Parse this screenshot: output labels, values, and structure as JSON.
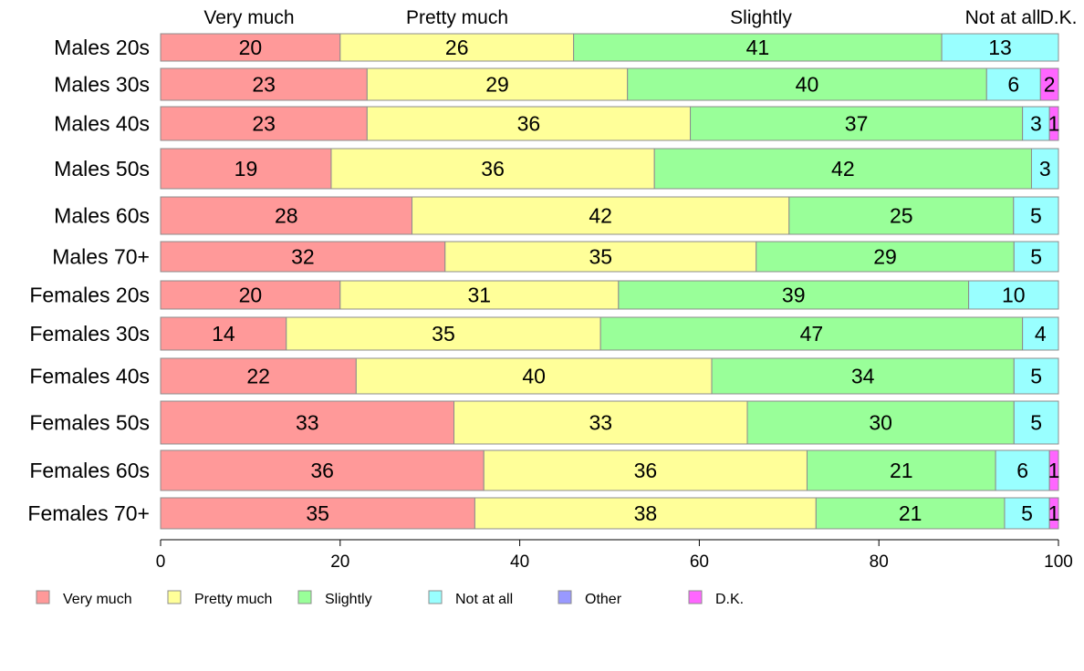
{
  "chart_data": {
    "type": "bar",
    "orientation": "horizontal",
    "stacked": true,
    "categories": [
      "Males 20s",
      "Males 30s",
      "Males 40s",
      "Males 50s",
      "Males 60s",
      "Males 70+",
      "Females 20s",
      "Females 30s",
      "Females 40s",
      "Females 50s",
      "Females 60s",
      "Females 70+"
    ],
    "series": [
      {
        "name": "Very much",
        "color": "#ff9999",
        "values": [
          20,
          23,
          23,
          19,
          28,
          32,
          20,
          14,
          22,
          33,
          36,
          35
        ]
      },
      {
        "name": "Pretty much",
        "color": "#ffff99",
        "values": [
          26,
          29,
          36,
          36,
          42,
          35,
          31,
          35,
          40,
          33,
          36,
          38
        ]
      },
      {
        "name": "Slightly",
        "color": "#99ff99",
        "values": [
          41,
          40,
          37,
          42,
          25,
          29,
          39,
          47,
          34,
          30,
          21,
          21
        ]
      },
      {
        "name": "Not at all",
        "color": "#99ffff",
        "values": [
          13,
          6,
          3,
          3,
          5,
          5,
          10,
          4,
          5,
          5,
          6,
          5
        ]
      },
      {
        "name": "Other",
        "color": "#9999ff",
        "values": [
          0,
          0,
          0,
          0,
          0,
          0,
          0,
          0,
          0,
          0,
          0,
          0
        ]
      },
      {
        "name": "D.K.",
        "color": "#ff66ff",
        "values": [
          0,
          2,
          1,
          0,
          0,
          0,
          0,
          0,
          0,
          0,
          1,
          1
        ]
      }
    ],
    "top_labels": [
      "Very much",
      "Pretty much",
      "Slightly",
      "Not at all",
      "D.K."
    ],
    "xlim": [
      0,
      100
    ],
    "xticks": [
      0,
      20,
      40,
      60,
      80,
      100
    ],
    "legend": {
      "position": "bottom",
      "entries": [
        "Very much",
        "Pretty much",
        "Slightly",
        "Not at all",
        "Other",
        "D.K."
      ]
    },
    "grid": false
  }
}
